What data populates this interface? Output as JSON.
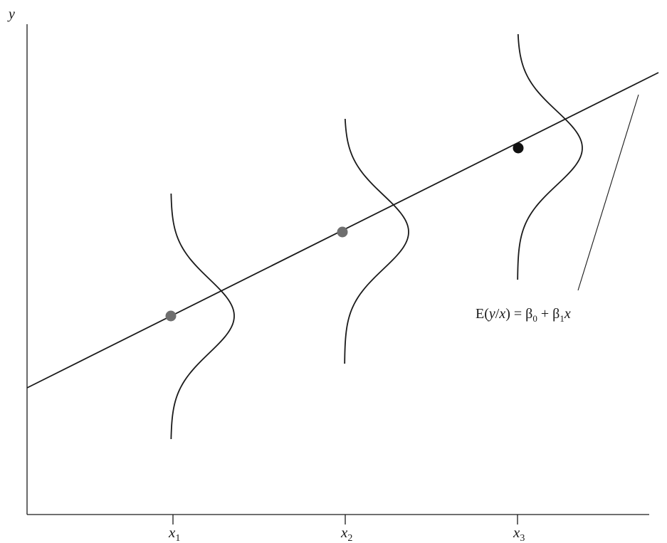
{
  "y_axis_label": "y",
  "x_ticks": [
    {
      "base": "x",
      "sub": "1"
    },
    {
      "base": "x",
      "sub": "2"
    },
    {
      "base": "x",
      "sub": "3"
    }
  ],
  "regression_label": {
    "lhs_E": "E(",
    "lhs_y": "y",
    "lhs_slash": "/",
    "lhs_x": "x",
    "lhs_close": ") = β",
    "sub0": "0",
    "plus": " + β",
    "sub1": "1",
    "rhs_x": "x"
  },
  "points": [
    {
      "name": "mean-point-1",
      "color": "#6e6e6e"
    },
    {
      "name": "mean-point-2",
      "color": "#6e6e6e"
    },
    {
      "name": "mean-point-3",
      "color": "#111111"
    }
  ]
}
